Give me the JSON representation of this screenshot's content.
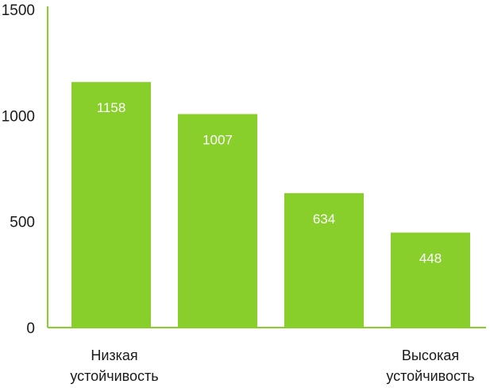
{
  "chart_data": {
    "type": "bar",
    "values": [
      1158,
      1007,
      634,
      448
    ],
    "ylim": [
      0,
      1500
    ],
    "yticks": [
      0,
      500,
      1000,
      1500
    ],
    "grid": false,
    "bar_color": "#88cf2b",
    "axis_color": "#88cf2b",
    "label_color": "#1a1a1a",
    "value_label_color": "#ffffff",
    "annotations": {
      "left": [
        "Низкая",
        "устойчивость"
      ],
      "right": [
        "Высокая",
        "устойчивость"
      ]
    }
  }
}
